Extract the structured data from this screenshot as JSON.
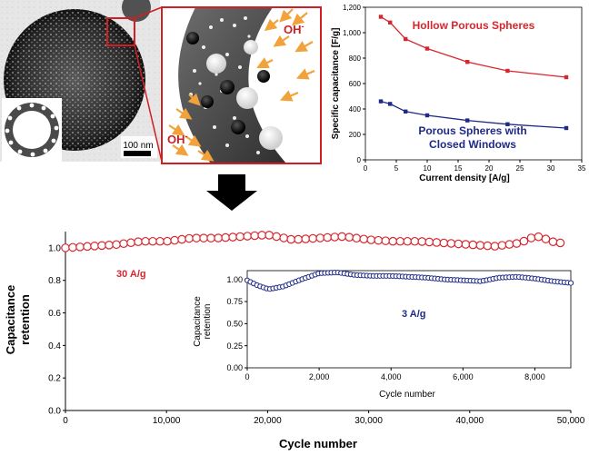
{
  "tem": {
    "scale_label": "100 nm",
    "ion_label_1": "OH",
    "ion_label_2": "OH",
    "ion_superscript": "-"
  },
  "colors": {
    "hollow": "#d8262e",
    "closed": "#1f2a86",
    "retention_main": "#d8262e",
    "retention_inset": "#1f2a86",
    "zoom_box": "#d01e22"
  },
  "chart_data": [
    {
      "type": "line",
      "xlabel": "Current density [A/g]",
      "ylabel": "Specific capacitance [F/g]",
      "xlim": [
        0,
        35
      ],
      "ylim": [
        0,
        1200
      ],
      "xticks": [
        0,
        5,
        10,
        15,
        20,
        25,
        30,
        35
      ],
      "xtick_labels": [
        "0",
        "5",
        "10",
        "15",
        "20",
        "25",
        "30",
        "35"
      ],
      "yticks": [
        0,
        200,
        400,
        600,
        800,
        1000,
        1200
      ],
      "ytick_labels": [
        "0",
        "200",
        "400",
        "600",
        "800",
        "1,000",
        "1,200"
      ],
      "grid": false,
      "series": [
        {
          "name": "Hollow Porous Spheres",
          "x": [
            2.5,
            4,
            6.5,
            10,
            16.5,
            23,
            32.5
          ],
          "y": [
            1125,
            1080,
            950,
            875,
            770,
            700,
            650
          ]
        },
        {
          "name": "Porous Spheres with Closed Windows",
          "name_lines": [
            "Porous Spheres with",
            "Closed Windows"
          ],
          "x": [
            2.5,
            4,
            6.5,
            10,
            16.5,
            23,
            32.5
          ],
          "y": [
            460,
            440,
            380,
            350,
            310,
            280,
            250
          ]
        }
      ]
    },
    {
      "type": "scatter",
      "xlabel": "Cycle number",
      "ylabel_lines": [
        "Capacitance",
        "retention"
      ],
      "xlim": [
        0,
        50000
      ],
      "ylim": [
        0,
        1.1
      ],
      "xticks": [
        0,
        10000,
        20000,
        30000,
        40000,
        50000
      ],
      "xtick_labels": [
        "0",
        "10,000",
        "20,000",
        "30,000",
        "40,000",
        "50,000"
      ],
      "yticks": [
        0,
        0.2,
        0.4,
        0.6,
        0.8,
        1.0
      ],
      "ytick_labels": [
        "0.0",
        "0.2",
        "0.4",
        "0.6",
        "0.8",
        "1.0"
      ],
      "annotation": "30 A/g",
      "grid": false,
      "series": [
        {
          "name": "30 A/g",
          "x": [
            0,
            2500,
            5000,
            7500,
            10000,
            12500,
            15000,
            17500,
            20000,
            22500,
            25000,
            27500,
            30000,
            32500,
            35000,
            37500,
            40000,
            42500,
            45000,
            46000,
            47000,
            48000,
            50000
          ],
          "y": [
            1.0,
            1.01,
            1.02,
            1.04,
            1.04,
            1.06,
            1.06,
            1.07,
            1.08,
            1.05,
            1.06,
            1.07,
            1.05,
            1.04,
            1.04,
            1.03,
            1.02,
            1.01,
            1.03,
            1.06,
            1.07,
            1.04,
            1.02
          ]
        }
      ]
    },
    {
      "type": "scatter",
      "xlabel": "Cycle number",
      "ylabel_lines": [
        "Capacitance",
        "retention"
      ],
      "xlim": [
        0,
        9000
      ],
      "ylim": [
        0,
        1.1
      ],
      "xticks": [
        0,
        2000,
        4000,
        6000,
        8000
      ],
      "xtick_labels": [
        "0",
        "2,000",
        "4,000",
        "6,000",
        "8,000"
      ],
      "yticks": [
        0,
        0.25,
        0.5,
        0.75,
        1.0
      ],
      "ytick_labels": [
        "0.00",
        "0.25",
        "0.50",
        "0.75",
        "1.00"
      ],
      "annotation": "3 A/g",
      "grid": false,
      "series": [
        {
          "name": "3 A/g",
          "x": [
            0,
            300,
            600,
            1000,
            1500,
            2000,
            2500,
            3000,
            3500,
            4000,
            4500,
            5000,
            5500,
            6000,
            6500,
            7000,
            7500,
            8000,
            8500,
            9000
          ],
          "y": [
            0.99,
            0.93,
            0.89,
            0.92,
            1.0,
            1.07,
            1.08,
            1.05,
            1.04,
            1.04,
            1.03,
            1.02,
            1.0,
            0.99,
            0.98,
            1.02,
            1.03,
            1.01,
            0.98,
            0.96
          ]
        }
      ]
    }
  ]
}
